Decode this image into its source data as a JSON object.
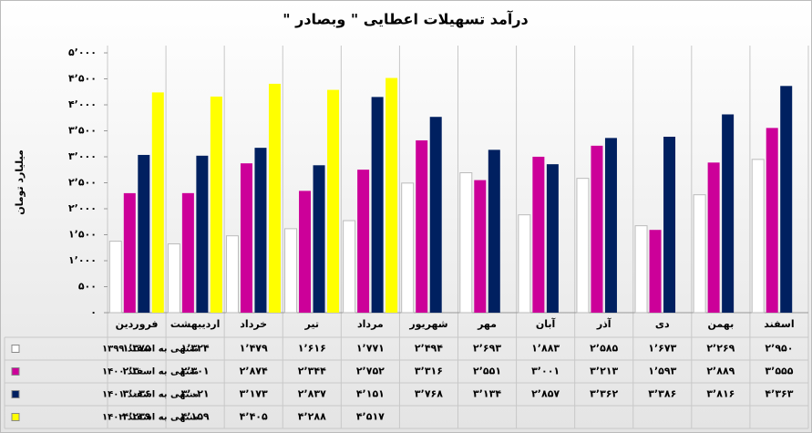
{
  "chart_data": {
    "type": "bar",
    "title": "درآمد تسهیلات اعطایی \" وبصادر \"",
    "y_label": "میلیارد تومان",
    "categories": [
      "فروردین",
      "اردیبهشت",
      "خرداد",
      "تیر",
      "مرداد",
      "شهریور",
      "مهر",
      "آبان",
      "آذر",
      "دی",
      "بهمن",
      "اسفند"
    ],
    "series": [
      {
        "name": "منتهی به اسفند ۱۳۹۹",
        "color": "#ffffff",
        "values": [
          1375,
          1324,
          1479,
          1616,
          1771,
          2494,
          2693,
          1883,
          2585,
          1673,
          2269,
          2950
        ],
        "value_labels": [
          "۱٬۳۷۵",
          "۱٬۳۲۴",
          "۱٬۴۷۹",
          "۱٬۶۱۶",
          "۱٬۷۷۱",
          "۲٬۴۹۴",
          "۲٬۶۹۳",
          "۱٬۸۸۳",
          "۲٬۵۸۵",
          "۱٬۶۷۳",
          "۲٬۲۶۹",
          "۲٬۹۵۰"
        ]
      },
      {
        "name": "منتهی به اسفند ۱۴۰۰",
        "color": "#cc0099",
        "values": [
          2300,
          2301,
          2874,
          2344,
          2752,
          3316,
          2551,
          3001,
          3213,
          1593,
          2889,
          3555
        ],
        "value_labels": [
          "۲٬۳۰۰",
          "۲٬۳۰۱",
          "۲٬۸۷۴",
          "۲٬۳۴۴",
          "۲٬۷۵۲",
          "۳٬۳۱۶",
          "۲٬۵۵۱",
          "۳٬۰۰۱",
          "۳٬۲۱۳",
          "۱٬۵۹۳",
          "۲٬۸۸۹",
          "۳٬۵۵۵"
        ]
      },
      {
        "name": "منتهی به اسفند ۱۴۰۱",
        "color": "#002060",
        "values": [
          3036,
          3021,
          3173,
          2837,
          4151,
          3768,
          3134,
          2857,
          3362,
          3386,
          3816,
          4363
        ],
        "value_labels": [
          "۳٬۰۳۶",
          "۳٬۰۲۱",
          "۳٬۱۷۳",
          "۲٬۸۳۷",
          "۴٬۱۵۱",
          "۳٬۷۶۸",
          "۳٬۱۳۴",
          "۲٬۸۵۷",
          "۳٬۳۶۲",
          "۳٬۳۸۶",
          "۳٬۸۱۶",
          "۴٬۳۶۳"
        ]
      },
      {
        "name": "منتهی به اسفند ۱۴۰۲",
        "color": "#ffff00",
        "values": [
          4239,
          4159,
          4405,
          4288,
          4517,
          null,
          null,
          null,
          null,
          null,
          null,
          null
        ],
        "value_labels": [
          "۴٬۲۳۹",
          "۴٬۱۵۹",
          "۴٬۴۰۵",
          "۴٬۲۸۸",
          "۴٬۵۱۷",
          null,
          null,
          null,
          null,
          null,
          null,
          null
        ]
      }
    ],
    "ylim": [
      0,
      5000
    ],
    "yticks": [
      {
        "value": 0,
        "label": "۰"
      },
      {
        "value": 500,
        "label": "۵۰۰"
      },
      {
        "value": 1000,
        "label": "۱٬۰۰۰"
      },
      {
        "value": 1500,
        "label": "۱٬۵۰۰"
      },
      {
        "value": 2000,
        "label": "۲٬۰۰۰"
      },
      {
        "value": 2500,
        "label": "۲٬۵۰۰"
      },
      {
        "value": 3000,
        "label": "۳٬۰۰۰"
      },
      {
        "value": 3500,
        "label": "۳٬۵۰۰"
      },
      {
        "value": 4000,
        "label": "۴٬۰۰۰"
      },
      {
        "value": 4500,
        "label": "۴٬۵۰۰"
      },
      {
        "value": 5000,
        "label": "۵٬۰۰۰"
      }
    ],
    "grid": false
  }
}
